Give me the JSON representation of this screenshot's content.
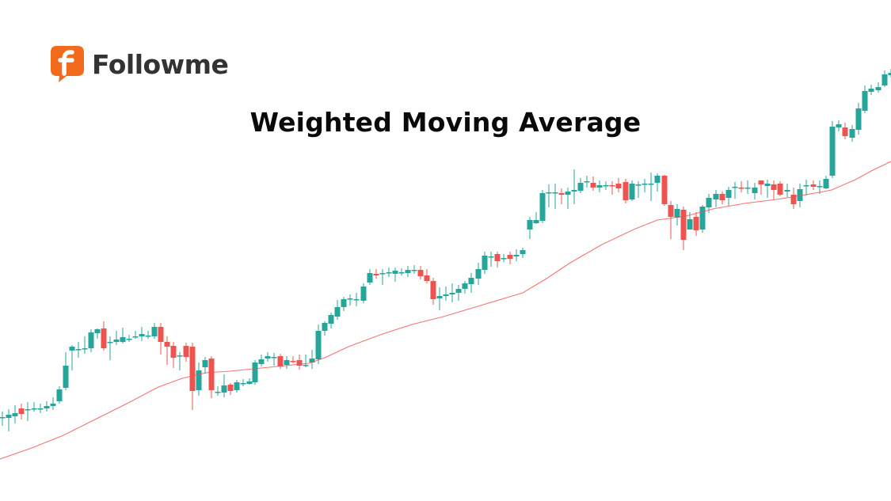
{
  "brand": {
    "name": "Followme",
    "logo_letter": "f",
    "logo_color": "#f26a1b",
    "text_color": "#333333"
  },
  "chart_data": {
    "type": "candlestick",
    "title": "Weighted Moving Average",
    "xlabel": "",
    "ylabel": "",
    "axes_visible": false,
    "grid": false,
    "legend": [],
    "colors": {
      "up": "#26a69a",
      "down": "#ef5350",
      "wma_line": "#ef5350"
    },
    "note": "Candles given in image pixel coordinates (y grows downward): x, open, close, high, low",
    "candles": [
      [
        3,
        527,
        527,
        520,
        538
      ],
      [
        11,
        528,
        524,
        517,
        545
      ],
      [
        19,
        526,
        522,
        512,
        535
      ],
      [
        27,
        516,
        523,
        510,
        530
      ],
      [
        35,
        517,
        517,
        508,
        532
      ],
      [
        43,
        516,
        516,
        508,
        520
      ],
      [
        51,
        516,
        516,
        510,
        522
      ],
      [
        59,
        516,
        513,
        507,
        520
      ],
      [
        67,
        513,
        510,
        502,
        518
      ],
      [
        75,
        507,
        492,
        488,
        510
      ],
      [
        83,
        490,
        462,
        445,
        493
      ],
      [
        91,
        443,
        438,
        436,
        468
      ],
      [
        99,
        441,
        441,
        432,
        452
      ],
      [
        107,
        441,
        440,
        425,
        447
      ],
      [
        115,
        440,
        420,
        416,
        445
      ],
      [
        123,
        421,
        416,
        415,
        428
      ],
      [
        131,
        415,
        440,
        406,
        443
      ],
      [
        139,
        432,
        432,
        425,
        455
      ],
      [
        147,
        432,
        429,
        418,
        436
      ],
      [
        155,
        432,
        426,
        414,
        434
      ],
      [
        163,
        428,
        428,
        423,
        432
      ],
      [
        171,
        425,
        425,
        418,
        428
      ],
      [
        179,
        425,
        422,
        413,
        431
      ],
      [
        187,
        424,
        424,
        418,
        428
      ],
      [
        195,
        425,
        413,
        408,
        428
      ],
      [
        203,
        413,
        432,
        408,
        448
      ],
      [
        211,
        432,
        438,
        425,
        461
      ],
      [
        219,
        437,
        452,
        432,
        465
      ],
      [
        227,
        449,
        449,
        445,
        468
      ],
      [
        235,
        437,
        451,
        433,
        457
      ],
      [
        243,
        438,
        494,
        433,
        518
      ],
      [
        251,
        493,
        468,
        458,
        500
      ],
      [
        259,
        464,
        455,
        451,
        472
      ],
      [
        267,
        453,
        493,
        450,
        503
      ],
      [
        275,
        495,
        495,
        488,
        500
      ],
      [
        283,
        496,
        487,
        473,
        502
      ],
      [
        291,
        486,
        494,
        484,
        499
      ],
      [
        299,
        493,
        483,
        480,
        496
      ],
      [
        307,
        484,
        484,
        479,
        488
      ],
      [
        315,
        485,
        482,
        478,
        486
      ],
      [
        322,
        483,
        458,
        455,
        486
      ],
      [
        330,
        460,
        454,
        448,
        463
      ],
      [
        338,
        453,
        450,
        445,
        457
      ],
      [
        346,
        451,
        451,
        446,
        462
      ],
      [
        354,
        450,
        463,
        447,
        466
      ],
      [
        362,
        461,
        455,
        450,
        466
      ],
      [
        370,
        456,
        457,
        450,
        459
      ],
      [
        378,
        455,
        462,
        448,
        467
      ],
      [
        386,
        461,
        461,
        448,
        464
      ],
      [
        394,
        458,
        453,
        442,
        466
      ],
      [
        402,
        454,
        418,
        410,
        460
      ],
      [
        410,
        418,
        408,
        406,
        424
      ],
      [
        418,
        409,
        398,
        395,
        415
      ],
      [
        426,
        400,
        388,
        379,
        404
      ],
      [
        434,
        388,
        378,
        375,
        393
      ],
      [
        442,
        378,
        377,
        372,
        386
      ],
      [
        450,
        378,
        378,
        370,
        387
      ],
      [
        459,
        380,
        362,
        358,
        383
      ],
      [
        467,
        357,
        345,
        340,
        360
      ],
      [
        475,
        346,
        348,
        340,
        352
      ],
      [
        483,
        345,
        345,
        340,
        360
      ],
      [
        491,
        345,
        344,
        338,
        350
      ],
      [
        499,
        346,
        342,
        338,
        356
      ],
      [
        507,
        344,
        344,
        339,
        348
      ],
      [
        515,
        345,
        341,
        336,
        350
      ],
      [
        523,
        342,
        341,
        335,
        346
      ],
      [
        531,
        341,
        349,
        336,
        353
      ],
      [
        539,
        348,
        355,
        340,
        358
      ],
      [
        547,
        355,
        378,
        351,
        385
      ],
      [
        555,
        377,
        374,
        363,
        392
      ],
      [
        563,
        374,
        372,
        362,
        380
      ],
      [
        571,
        372,
        370,
        358,
        382
      ],
      [
        579,
        370,
        365,
        360,
        380
      ],
      [
        587,
        365,
        358,
        355,
        371
      ],
      [
        595,
        359,
        351,
        345,
        370
      ],
      [
        604,
        352,
        340,
        332,
        360
      ],
      [
        612,
        341,
        323,
        318,
        346
      ],
      [
        620,
        324,
        324,
        318,
        337
      ],
      [
        628,
        321,
        330,
        318,
        338
      ],
      [
        636,
        326,
        326,
        321,
        331
      ],
      [
        644,
        322,
        327,
        318,
        334
      ],
      [
        652,
        324,
        322,
        315,
        330
      ],
      [
        660,
        321,
        316,
        313,
        326
      ],
      [
        669,
        290,
        278,
        274,
        302
      ],
      [
        677,
        282,
        278,
        268,
        283
      ],
      [
        685,
        279,
        244,
        240,
        282
      ],
      [
        693,
        244,
        243,
        233,
        262
      ],
      [
        701,
        244,
        243,
        232,
        264
      ],
      [
        709,
        244,
        246,
        238,
        258
      ],
      [
        717,
        246,
        242,
        237,
        264
      ],
      [
        725,
        242,
        240,
        214,
        258
      ],
      [
        733,
        241,
        231,
        225,
        244
      ],
      [
        741,
        229,
        229,
        222,
        237
      ],
      [
        749,
        231,
        237,
        223,
        241
      ],
      [
        757,
        237,
        234,
        228,
        243
      ],
      [
        765,
        235,
        234,
        229,
        240
      ],
      [
        773,
        234,
        235,
        229,
        246
      ],
      [
        781,
        232,
        238,
        225,
        243
      ],
      [
        790,
        230,
        253,
        226,
        257
      ],
      [
        798,
        252,
        232,
        228,
        254
      ],
      [
        806,
        234,
        233,
        229,
        250
      ],
      [
        814,
        232,
        232,
        226,
        243
      ],
      [
        822,
        232,
        232,
        218,
        254
      ],
      [
        830,
        231,
        222,
        219,
        242
      ],
      [
        839,
        222,
        258,
        221,
        260
      ],
      [
        847,
        259,
        274,
        254,
        302
      ],
      [
        855,
        275,
        264,
        258,
        285
      ],
      [
        863,
        265,
        303,
        261,
        316
      ],
      [
        871,
        290,
        277,
        268,
        290
      ],
      [
        879,
        274,
        291,
        268,
        298
      ],
      [
        887,
        290,
        261,
        259,
        294
      ],
      [
        895,
        262,
        250,
        245,
        269
      ],
      [
        904,
        252,
        245,
        240,
        262
      ],
      [
        912,
        245,
        253,
        242,
        258
      ],
      [
        920,
        250,
        240,
        236,
        260
      ],
      [
        928,
        237,
        236,
        230,
        251
      ],
      [
        936,
        237,
        238,
        229,
        243
      ],
      [
        944,
        237,
        237,
        228,
        245
      ],
      [
        953,
        244,
        237,
        231,
        252
      ],
      [
        961,
        228,
        233,
        230,
        246
      ],
      [
        969,
        235,
        232,
        227,
        250
      ],
      [
        977,
        233,
        240,
        228,
        252
      ],
      [
        985,
        232,
        246,
        229,
        248
      ],
      [
        994,
        242,
        240,
        232,
        249
      ],
      [
        1002,
        246,
        258,
        237,
        264
      ],
      [
        1010,
        254,
        239,
        232,
        262
      ],
      [
        1018,
        235,
        234,
        227,
        247
      ],
      [
        1027,
        233,
        236,
        228,
        240
      ],
      [
        1035,
        236,
        235,
        228,
        245
      ],
      [
        1043,
        238,
        226,
        222,
        239
      ],
      [
        1051,
        222,
        160,
        153,
        225
      ],
      [
        1059,
        161,
        157,
        152,
        166
      ],
      [
        1067,
        161,
        172,
        155,
        176
      ],
      [
        1076,
        174,
        163,
        158,
        179
      ],
      [
        1084,
        164,
        137,
        130,
        170
      ],
      [
        1092,
        140,
        115,
        108,
        143
      ],
      [
        1100,
        116,
        112,
        107,
        120
      ],
      [
        1109,
        114,
        110,
        104,
        117
      ],
      [
        1117,
        108,
        94,
        89,
        110
      ],
      [
        1125,
        95,
        92,
        87,
        98
      ]
    ],
    "wma_line": [
      [
        0,
        580
      ],
      [
        40,
        566
      ],
      [
        80,
        550
      ],
      [
        120,
        530
      ],
      [
        160,
        510
      ],
      [
        200,
        489
      ],
      [
        230,
        478
      ],
      [
        260,
        471
      ],
      [
        290,
        469
      ],
      [
        330,
        465
      ],
      [
        360,
        462
      ],
      [
        390,
        459
      ],
      [
        410,
        452
      ],
      [
        440,
        438
      ],
      [
        480,
        423
      ],
      [
        520,
        410
      ],
      [
        560,
        400
      ],
      [
        600,
        388
      ],
      [
        640,
        376
      ],
      [
        660,
        370
      ],
      [
        690,
        352
      ],
      [
        720,
        332
      ],
      [
        760,
        309
      ],
      [
        800,
        290
      ],
      [
        830,
        278
      ],
      [
        845,
        276
      ],
      [
        870,
        272
      ],
      [
        900,
        264
      ],
      [
        940,
        257
      ],
      [
        980,
        252
      ],
      [
        1000,
        249
      ],
      [
        1040,
        242
      ],
      [
        1050,
        240
      ],
      [
        1080,
        227
      ],
      [
        1100,
        216
      ],
      [
        1125,
        204
      ]
    ]
  }
}
